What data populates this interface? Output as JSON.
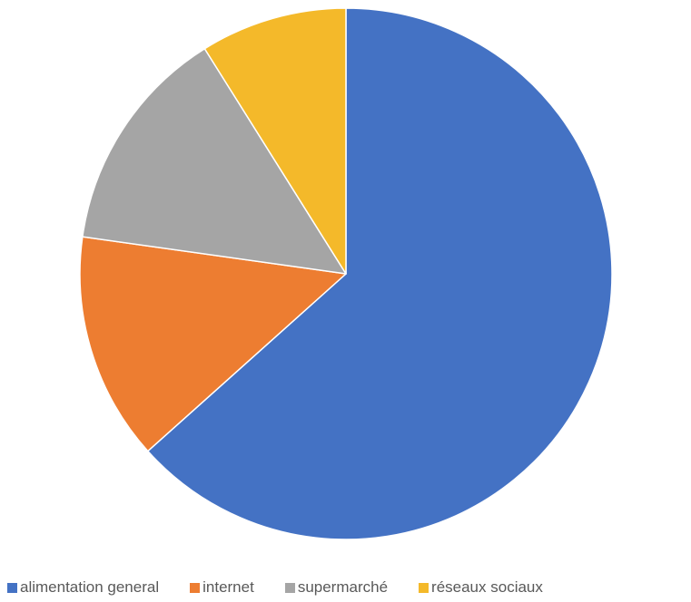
{
  "chart_data": {
    "type": "pie",
    "title": "",
    "slices": [
      {
        "name": "alimentation general",
        "value": 64,
        "color": "#4472C4"
      },
      {
        "name": "internet",
        "value": 14,
        "color": "#ED7D31"
      },
      {
        "name": "supermarché",
        "value": 14,
        "color": "#A5A5A5"
      },
      {
        "name": "réseaux sociaux",
        "value": 9,
        "color": "#F4B92A"
      }
    ],
    "start_angle": "12 o'clock, clockwise",
    "legend_position": "bottom"
  }
}
